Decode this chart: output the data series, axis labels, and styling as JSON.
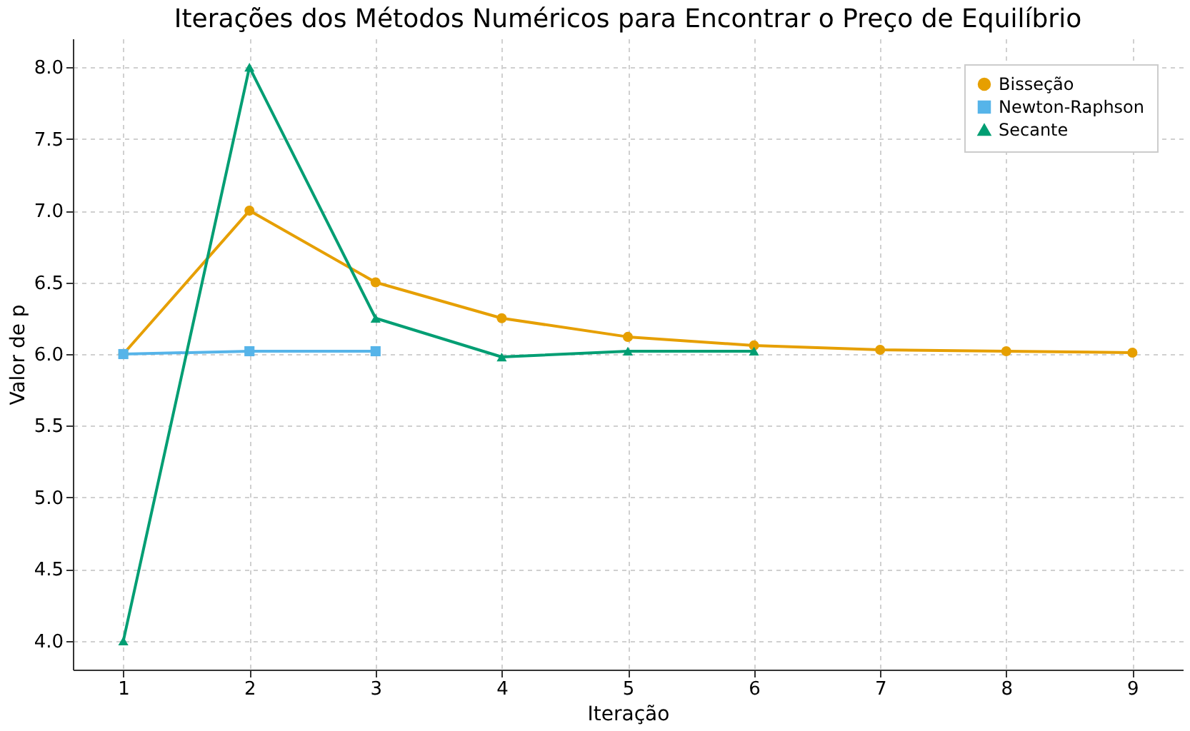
{
  "chart_data": {
    "type": "line",
    "title": "Iterações dos Métodos Numéricos para Encontrar o Preço de Equilíbrio",
    "xlabel": "Iteração",
    "ylabel": "Valor de p",
    "series": [
      {
        "name": "Bisseção",
        "color": "#e69f00",
        "marker": "circle",
        "x": [
          1,
          2,
          3,
          4,
          5,
          6,
          7,
          8,
          9
        ],
        "values": [
          6.0,
          7.0,
          6.5,
          6.25,
          6.12,
          6.06,
          6.03,
          6.02,
          6.01
        ]
      },
      {
        "name": "Newton-Raphson",
        "color": "#56b4e9",
        "marker": "square",
        "x": [
          1,
          2,
          3
        ],
        "values": [
          6.0,
          6.02,
          6.02
        ]
      },
      {
        "name": "Secante",
        "color": "#009e73",
        "marker": "triangle",
        "x": [
          1,
          2,
          3,
          4,
          5,
          6
        ],
        "values": [
          4.0,
          8.0,
          6.25,
          5.98,
          6.02,
          6.02
        ]
      }
    ],
    "xlim": [
      0.6,
      9.4
    ],
    "xticks": [
      1,
      2,
      3,
      4,
      5,
      6,
      7,
      8,
      9
    ],
    "ylim": [
      3.8,
      8.2
    ],
    "yticks": [
      {
        "value": 4.0,
        "label": "4.0"
      },
      {
        "value": 4.5,
        "label": "4.5"
      },
      {
        "value": 5.0,
        "label": "5.0"
      },
      {
        "value": 5.5,
        "label": "5.5"
      },
      {
        "value": 6.0,
        "label": "6.0"
      },
      {
        "value": 6.5,
        "label": "6.5"
      },
      {
        "value": 7.0,
        "label": "7.0"
      },
      {
        "value": 7.5,
        "label": "7.5"
      },
      {
        "value": 8.0,
        "label": "8.0"
      }
    ],
    "grid": true,
    "legend": "top right",
    "line_style": "solid"
  }
}
